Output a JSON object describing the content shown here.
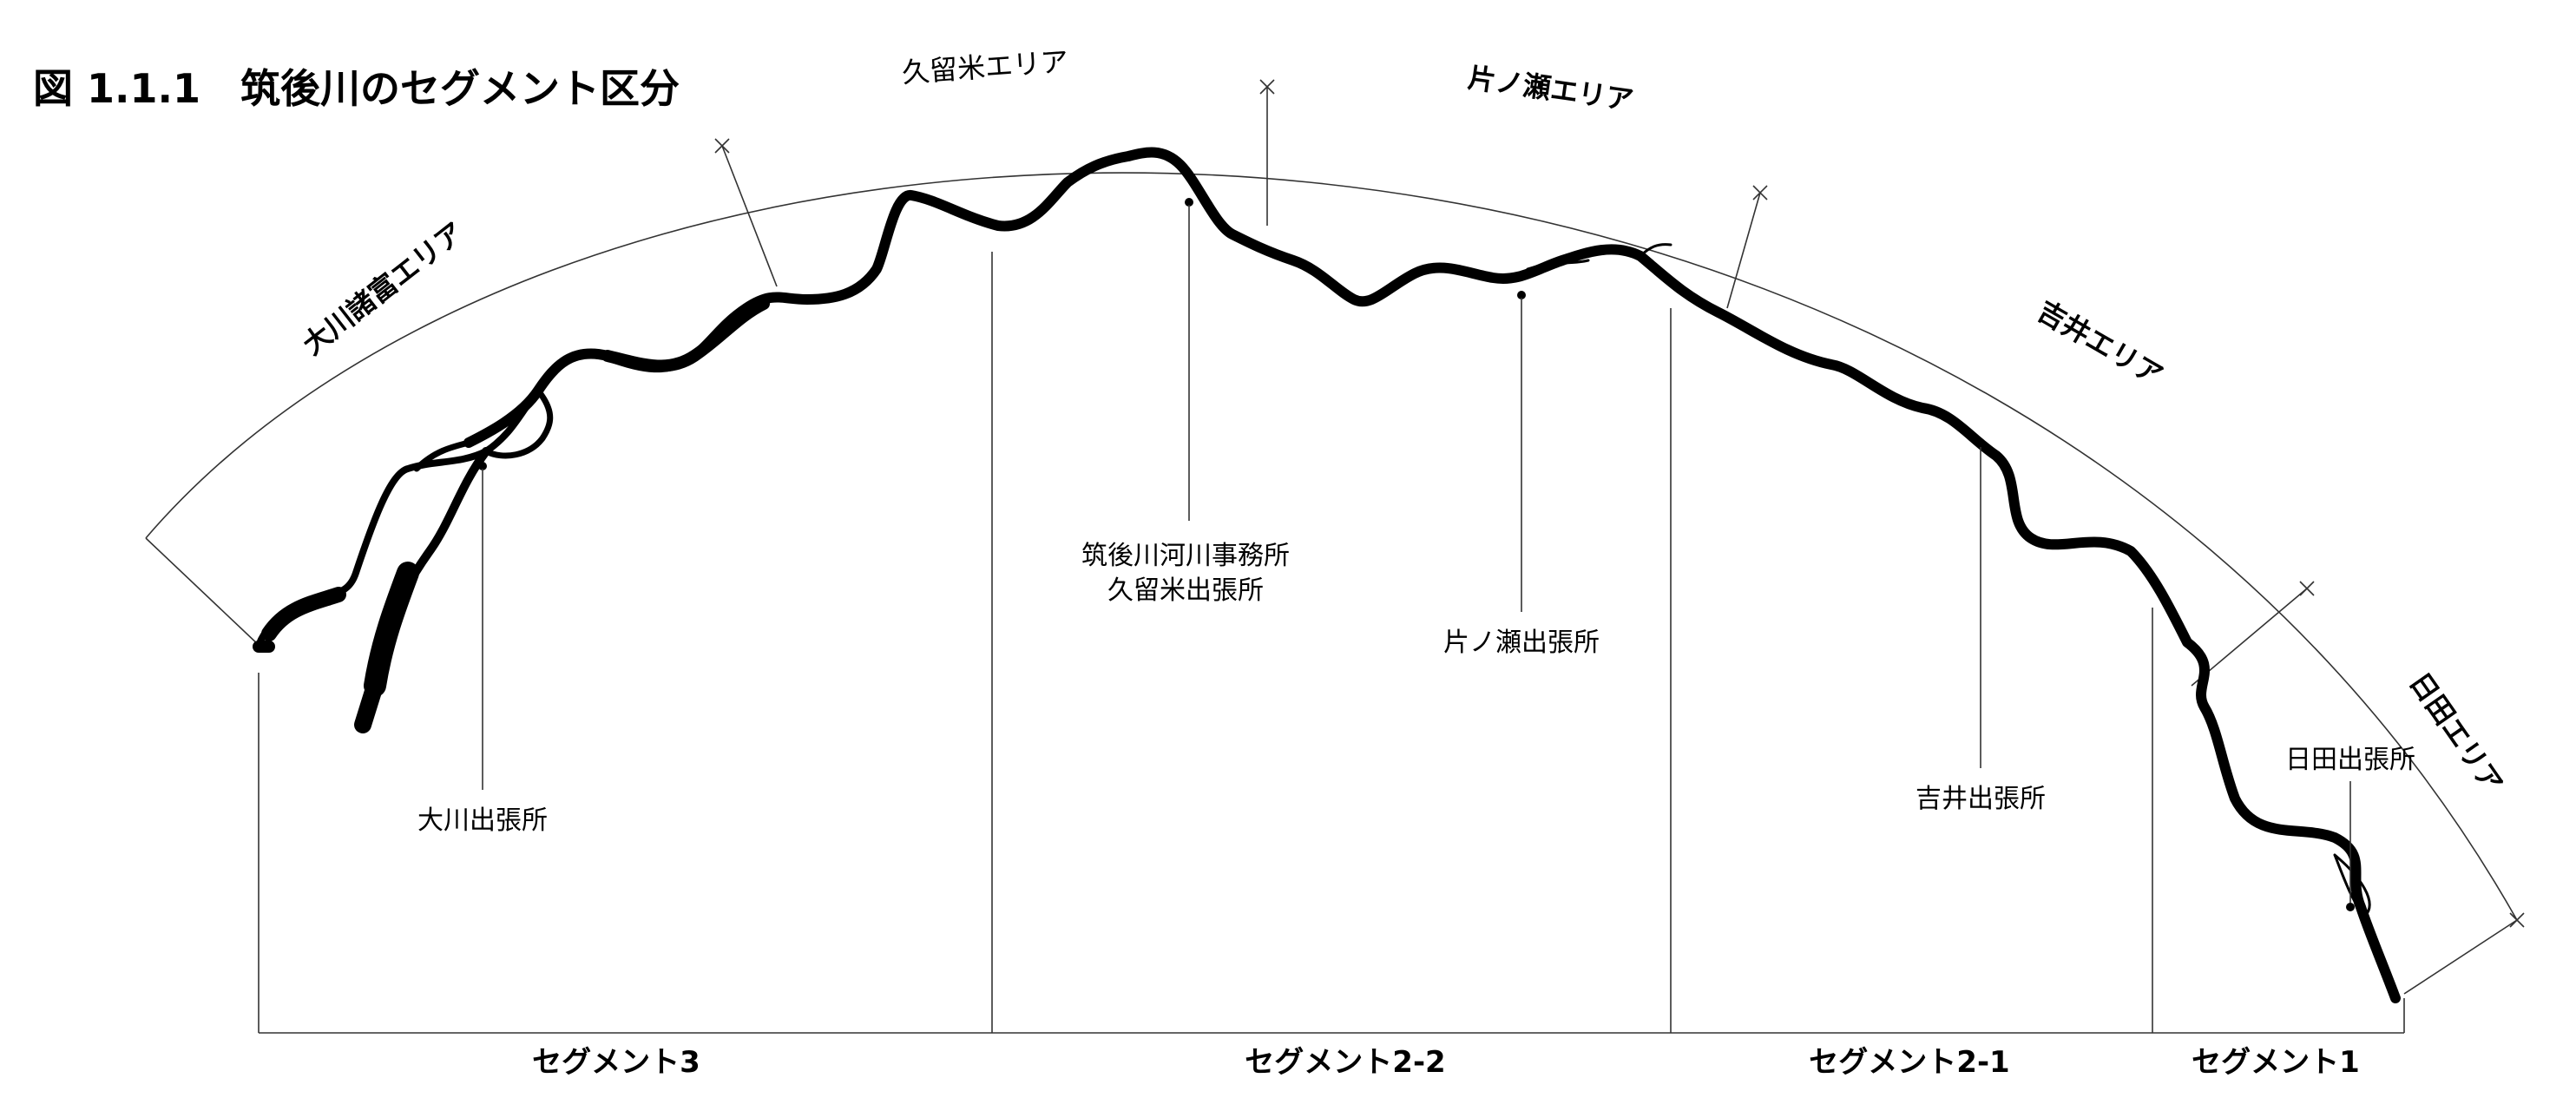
{
  "title": "図 1.1.1　筑後川のセグメント区分",
  "areas": [
    "大川諸富エリア",
    "久留米エリア",
    "片ノ瀬エリア",
    "吉井エリア",
    "日田エリア"
  ],
  "offices": {
    "ookawa": "大川出張所",
    "kurume_line1": "筑後川河川事務所",
    "kurume_line2": "久留米出張所",
    "katanose": "片ノ瀬出張所",
    "yoshii": "吉井出張所",
    "hita": "日田出張所"
  },
  "segments": [
    "セグメント3",
    "セグメント2-2",
    "セグメント2-1",
    "セグメント1"
  ],
  "colors": {
    "river": "#000000",
    "lines": "#333333"
  }
}
